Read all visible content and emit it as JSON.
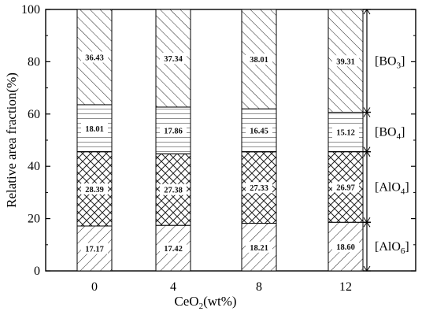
{
  "chart_data": {
    "type": "bar",
    "stacked": true,
    "categories": [
      "0",
      "4",
      "8",
      "12"
    ],
    "xlabel_main": "CeO",
    "xlabel_sub": "2",
    "xlabel_tail": "(wt%)",
    "ylabel": "Relative area fraction(%)",
    "ylim": [
      0,
      100
    ],
    "yticks": [
      "0",
      "20",
      "40",
      "60",
      "80",
      "100"
    ],
    "series": [
      {
        "name": "[AlO6]",
        "label_main": "[AlO",
        "label_sub": "6",
        "label_tail": "]",
        "values": [
          17.17,
          17.42,
          18.21,
          18.6
        ],
        "pattern": "forward-diagonal"
      },
      {
        "name": "[AlO4]",
        "label_main": "[AlO",
        "label_sub": "4",
        "label_tail": "]",
        "values": [
          28.39,
          27.38,
          27.33,
          26.97
        ],
        "pattern": "crosshatch"
      },
      {
        "name": "[BO4]",
        "label_main": "[BO",
        "label_sub": "4",
        "label_tail": "]",
        "values": [
          18.01,
          17.86,
          16.45,
          15.12
        ],
        "pattern": "horizontal"
      },
      {
        "name": "[BO3]",
        "label_main": "[BO",
        "label_sub": "3",
        "label_tail": "]",
        "values": [
          36.43,
          37.34,
          38.01,
          39.31
        ],
        "pattern": "back-diagonal"
      }
    ],
    "grid": false,
    "legend_placement": "right"
  }
}
